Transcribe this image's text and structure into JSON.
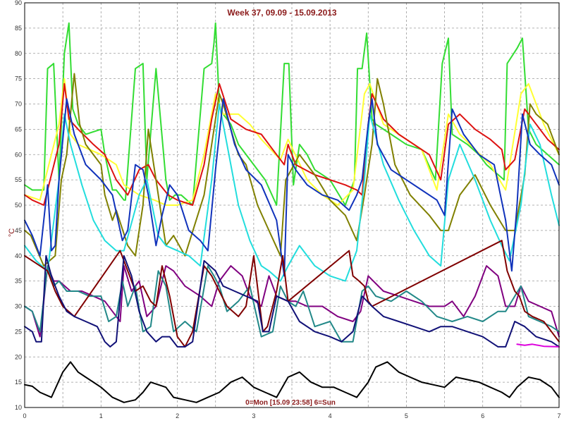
{
  "chart_data": {
    "type": "line",
    "title": "Week 37, 09.09 - 15.09.2013",
    "ylabel": "°C",
    "xlabel": "",
    "annotation": "0=Mon [15.09 23:58] 6=Sun",
    "xlim": [
      0,
      7
    ],
    "ylim": [
      10,
      90
    ],
    "xticks": [
      0,
      1,
      2,
      3,
      4,
      5,
      6,
      7
    ],
    "yticks": [
      10,
      15,
      20,
      25,
      30,
      35,
      40,
      45,
      50,
      55,
      60,
      65,
      70,
      75,
      80,
      85,
      90
    ],
    "grid": true,
    "legend": "none",
    "series": [
      {
        "color": "#33dd33",
        "x": [
          0,
          0.1,
          0.25,
          0.3,
          0.38,
          0.45,
          0.52,
          0.58,
          0.63,
          0.7,
          0.8,
          1.0,
          1.05,
          1.15,
          1.2,
          1.3,
          1.32,
          1.45,
          1.55,
          1.6,
          1.72,
          1.85,
          1.9,
          1.97,
          2.05,
          2.2,
          2.35,
          2.45,
          2.48,
          2.5,
          2.55,
          2.6,
          2.7,
          2.8,
          3.0,
          3.15,
          3.3,
          3.4,
          3.46,
          3.52,
          3.6,
          3.7,
          3.8,
          4.0,
          4.2,
          4.32,
          4.36,
          4.42,
          4.48,
          4.55,
          4.6,
          4.8,
          5.0,
          5.2,
          5.38,
          5.47,
          5.55,
          5.6,
          5.8,
          5.95,
          6.05,
          6.28,
          6.32,
          6.45,
          6.52,
          6.6,
          6.7,
          6.85,
          7.0
        ],
        "y": [
          54,
          53,
          53,
          77,
          78,
          55,
          80,
          86,
          69,
          66,
          64,
          65,
          60,
          53,
          53,
          51,
          51,
          77,
          78,
          55,
          77,
          55,
          51,
          52,
          52,
          50,
          77,
          78,
          82,
          86,
          70,
          68,
          66,
          62,
          58,
          55,
          50,
          78,
          78,
          54,
          62,
          60,
          57,
          55,
          50,
          55,
          77,
          77,
          84,
          67,
          66,
          64,
          62,
          61,
          55,
          78,
          83,
          64,
          62,
          60,
          58,
          55,
          78,
          81,
          83,
          65,
          62,
          60,
          58
        ]
      },
      {
        "color": "#ffff33",
        "x": [
          0,
          0.2,
          0.45,
          0.52,
          0.6,
          0.7,
          0.85,
          1.0,
          1.2,
          1.3,
          1.5,
          1.7,
          1.85,
          2.0,
          2.2,
          2.35,
          2.5,
          2.6,
          2.8,
          2.95,
          3.1,
          3.35,
          3.45,
          3.7,
          3.9,
          4.1,
          4.3,
          4.45,
          4.52,
          4.7,
          4.9,
          5.2,
          5.4,
          5.55,
          5.7,
          5.9,
          6.1,
          6.3,
          6.5,
          6.6,
          6.8,
          7.0
        ],
        "y": [
          52,
          51,
          66,
          75,
          64,
          62,
          61,
          60,
          58,
          54,
          52,
          51,
          50,
          50,
          51,
          60,
          72,
          68,
          68,
          66,
          63,
          59,
          63,
          55,
          52,
          50,
          53,
          72,
          74,
          66,
          64,
          61,
          53,
          68,
          64,
          61,
          58,
          53,
          72,
          74,
          66,
          60
        ]
      },
      {
        "color": "#dd1111",
        "x": [
          0,
          0.1,
          0.25,
          0.35,
          0.45,
          0.52,
          0.58,
          0.7,
          0.9,
          1.05,
          1.2,
          1.35,
          1.5,
          1.62,
          1.72,
          1.88,
          2.0,
          2.2,
          2.35,
          2.45,
          2.55,
          2.7,
          2.9,
          3.1,
          3.3,
          3.4,
          3.45,
          3.55,
          3.8,
          4.0,
          4.2,
          4.35,
          4.42,
          4.5,
          4.55,
          4.7,
          4.9,
          5.1,
          5.3,
          5.45,
          5.55,
          5.7,
          5.9,
          6.1,
          6.25,
          6.3,
          6.42,
          6.55,
          6.7,
          6.85,
          7.0
        ],
        "y": [
          52,
          51,
          50,
          56,
          62,
          74,
          67,
          65,
          62,
          60,
          55,
          52,
          57,
          58,
          55,
          52,
          51,
          50,
          58,
          67,
          74,
          67,
          65,
          64,
          60,
          58,
          62,
          58,
          56,
          55,
          54,
          53,
          52,
          66,
          72,
          67,
          64,
          62,
          60,
          55,
          66,
          68,
          65,
          63,
          61,
          57,
          59,
          69,
          66,
          63,
          61
        ]
      },
      {
        "color": "#808000",
        "x": [
          0,
          0.08,
          0.25,
          0.4,
          0.48,
          0.55,
          0.65,
          0.72,
          0.8,
          1.0,
          1.05,
          1.15,
          1.2,
          1.35,
          1.45,
          1.55,
          1.62,
          1.72,
          1.85,
          1.95,
          2.1,
          2.35,
          2.48,
          2.55,
          2.6,
          2.8,
          2.9,
          3.05,
          3.2,
          3.35,
          3.42,
          3.6,
          3.8,
          4.0,
          4.2,
          4.35,
          4.45,
          4.55,
          4.62,
          4.7,
          4.85,
          5.05,
          5.3,
          5.45,
          5.55,
          5.7,
          5.9,
          6.1,
          6.3,
          6.42,
          6.55,
          6.62,
          6.7,
          6.85,
          7.0
        ],
        "y": [
          45,
          44,
          38,
          40,
          55,
          60,
          76,
          66,
          62,
          58,
          52,
          47,
          49,
          42,
          40,
          50,
          65,
          55,
          42,
          44,
          40,
          52,
          65,
          72,
          70,
          60,
          58,
          50,
          45,
          40,
          55,
          60,
          56,
          51,
          48,
          43,
          52,
          62,
          75,
          70,
          58,
          52,
          48,
          45,
          45,
          52,
          56,
          50,
          45,
          45,
          56,
          70,
          68,
          66,
          60
        ]
      },
      {
        "color": "#22dddd",
        "x": [
          0,
          0.15,
          0.3,
          0.45,
          0.52,
          0.6,
          0.75,
          0.9,
          1.05,
          1.2,
          1.3,
          1.5,
          1.6,
          1.75,
          1.85,
          2.0,
          2.15,
          2.3,
          2.45,
          2.55,
          2.65,
          2.8,
          2.95,
          3.1,
          3.2,
          3.35,
          3.45,
          3.6,
          3.8,
          4.0,
          4.2,
          4.35,
          4.45,
          4.52,
          4.7,
          4.9,
          5.1,
          5.3,
          5.45,
          5.55,
          5.7,
          5.9,
          6.1,
          6.25,
          6.35,
          6.5,
          6.62,
          6.75,
          6.9,
          7.0
        ],
        "y": [
          42,
          39,
          37,
          55,
          68,
          62,
          54,
          47,
          43,
          41,
          41,
          52,
          55,
          44,
          42,
          41,
          40,
          38,
          55,
          70,
          62,
          50,
          43,
          38,
          37,
          35,
          38,
          42,
          38,
          36,
          35,
          41,
          55,
          68,
          58,
          51,
          45,
          40,
          38,
          55,
          62,
          55,
          47,
          42,
          39,
          50,
          66,
          62,
          52,
          46
        ]
      },
      {
        "color": "#1133bb",
        "x": [
          0,
          0.1,
          0.2,
          0.3,
          0.35,
          0.4,
          0.45,
          0.55,
          0.65,
          0.8,
          1.0,
          1.15,
          1.28,
          1.35,
          1.45,
          1.55,
          1.62,
          1.72,
          1.8,
          1.9,
          2.0,
          2.15,
          2.3,
          2.4,
          2.5,
          2.6,
          2.75,
          2.9,
          3.1,
          3.3,
          3.4,
          3.45,
          3.55,
          3.7,
          3.9,
          4.1,
          4.25,
          4.35,
          4.42,
          4.5,
          4.55,
          4.62,
          4.8,
          5.0,
          5.2,
          5.4,
          5.5,
          5.6,
          5.75,
          5.95,
          6.15,
          6.3,
          6.38,
          6.45,
          6.52,
          6.62,
          6.75,
          6.9,
          7.0
        ],
        "y": [
          47,
          44,
          40,
          54,
          41,
          42,
          55,
          71,
          64,
          58,
          55,
          52,
          43,
          45,
          58,
          57,
          52,
          42,
          48,
          54,
          52,
          45,
          43,
          41,
          57,
          71,
          62,
          57,
          54,
          47,
          36,
          60,
          57,
          54,
          52,
          51,
          49,
          52,
          55,
          66,
          71,
          62,
          57,
          55,
          53,
          51,
          48,
          69,
          64,
          60,
          58,
          47,
          37,
          50,
          68,
          62,
          60,
          58,
          54
        ]
      },
      {
        "color": "#800080",
        "x": [
          0,
          0.1,
          0.2,
          0.3,
          0.38,
          0.45,
          0.6,
          0.75,
          0.9,
          1.05,
          1.15,
          1.25,
          1.3,
          1.4,
          1.5,
          1.6,
          1.72,
          1.85,
          1.95,
          2.1,
          2.3,
          2.45,
          2.55,
          2.7,
          2.85,
          2.95,
          3.1,
          3.2,
          3.3,
          3.45,
          3.55,
          3.7,
          3.9,
          4.1,
          4.3,
          4.4,
          4.5,
          4.7,
          4.9,
          5.1,
          5.3,
          5.5,
          5.6,
          5.75,
          5.9,
          6.05,
          6.2,
          6.3,
          6.42,
          6.5,
          6.6,
          6.75,
          6.9,
          7.0
        ],
        "y": [
          30,
          29,
          24,
          38,
          35,
          35,
          33,
          33,
          32,
          31,
          29,
          27,
          38,
          33,
          35,
          28,
          30,
          38,
          37,
          34,
          32,
          30,
          35,
          38,
          36,
          32,
          30,
          36,
          32,
          31,
          31,
          30,
          30,
          28,
          27,
          29,
          36,
          33,
          32,
          31,
          30,
          30,
          31,
          28,
          32,
          38,
          36,
          30,
          30,
          34,
          31,
          30,
          29,
          24
        ]
      },
      {
        "color": "#228888",
        "x": [
          0,
          0.1,
          0.2,
          0.3,
          0.38,
          0.45,
          0.55,
          0.7,
          0.85,
          1.0,
          1.1,
          1.2,
          1.28,
          1.35,
          1.45,
          1.55,
          1.65,
          1.75,
          1.85,
          1.95,
          2.1,
          2.25,
          2.4,
          2.48,
          2.55,
          2.65,
          2.8,
          2.95,
          3.1,
          3.25,
          3.35,
          3.45,
          3.55,
          3.65,
          3.8,
          4.0,
          4.15,
          4.3,
          4.42,
          4.5,
          4.6,
          4.8,
          5.0,
          5.2,
          5.4,
          5.6,
          5.8,
          6.0,
          6.2,
          6.3,
          6.42,
          6.5,
          6.6,
          6.75,
          6.9,
          7.0
        ],
        "y": [
          30,
          29,
          25,
          38,
          34,
          35,
          33,
          33,
          32,
          32,
          27,
          28,
          35,
          30,
          34,
          25,
          26,
          37,
          34,
          25,
          27,
          25,
          38,
          36,
          34,
          29,
          31,
          34,
          24,
          25,
          34,
          31,
          30,
          33,
          26,
          27,
          23,
          23,
          33,
          34,
          32,
          31,
          33,
          31,
          28,
          27,
          28,
          27,
          29,
          29,
          32,
          34,
          28,
          27,
          26,
          25
        ]
      },
      {
        "color": "#800000",
        "x": [
          0,
          0.2,
          0.3,
          0.4,
          0.5,
          0.65,
          1.25,
          1.35,
          1.45,
          1.55,
          1.65,
          1.72,
          1.8,
          1.9,
          2.0,
          2.1,
          2.2,
          2.35,
          2.45,
          2.55,
          2.65,
          2.8,
          2.9,
          3.0,
          3.12,
          3.18,
          3.3,
          3.38,
          3.45,
          4.25,
          4.3,
          4.38,
          4.45,
          4.5,
          4.55,
          6.25,
          6.32,
          6.42,
          6.48,
          6.55,
          6.65,
          6.8,
          7.0
        ],
        "y": [
          40,
          38,
          37,
          33,
          30,
          28,
          41,
          37,
          33,
          34,
          31,
          30,
          38,
          32,
          24,
          22,
          25,
          38,
          36,
          33,
          30,
          28,
          30,
          40,
          25,
          26,
          33,
          40,
          31,
          41,
          36,
          35,
          34,
          31,
          30,
          43,
          37,
          33,
          32,
          29,
          28,
          27,
          23
        ]
      },
      {
        "color": "#111177",
        "x": [
          0,
          0.1,
          0.15,
          0.22,
          0.28,
          0.35,
          0.45,
          0.55,
          0.65,
          0.8,
          0.95,
          1.05,
          1.12,
          1.2,
          1.3,
          1.4,
          1.5,
          1.6,
          1.72,
          1.8,
          1.9,
          2.0,
          2.1,
          2.2,
          2.35,
          2.5,
          2.6,
          2.75,
          2.9,
          3.05,
          3.12,
          3.2,
          3.3,
          3.45,
          3.6,
          3.8,
          4.0,
          4.15,
          4.3,
          4.42,
          4.55,
          4.7,
          4.9,
          5.1,
          5.3,
          5.45,
          5.6,
          5.8,
          6.0,
          6.2,
          6.3,
          6.42,
          6.55,
          6.7,
          6.9,
          7.0
        ],
        "y": [
          26,
          25,
          23,
          23,
          40,
          36,
          32,
          29,
          28,
          27,
          26,
          23,
          22,
          23,
          40,
          36,
          29,
          25,
          23,
          24,
          24,
          22,
          22,
          23,
          39,
          37,
          34,
          33,
          32,
          31,
          25,
          25,
          32,
          31,
          27,
          25,
          24,
          23,
          25,
          32,
          30,
          28,
          27,
          26,
          25,
          26,
          26,
          25,
          24,
          22,
          22,
          27,
          26,
          24,
          23,
          22
        ]
      },
      {
        "color": "#dd00dd",
        "x": [
          6.45,
          6.55,
          6.65,
          6.8,
          7.0
        ],
        "y": [
          22.5,
          22.3,
          22.5,
          22.1,
          22.0
        ]
      },
      {
        "color": "#000000",
        "x": [
          0,
          0.1,
          0.2,
          0.35,
          0.5,
          0.6,
          0.7,
          0.8,
          0.9,
          1.0,
          1.15,
          1.3,
          1.45,
          1.55,
          1.65,
          1.75,
          1.85,
          1.95,
          2.1,
          2.25,
          2.4,
          2.55,
          2.7,
          2.85,
          3.0,
          3.15,
          3.3,
          3.45,
          3.6,
          3.75,
          3.9,
          4.05,
          4.2,
          4.35,
          4.5,
          4.6,
          4.75,
          4.9,
          5.05,
          5.2,
          5.35,
          5.5,
          5.65,
          5.8,
          5.95,
          6.1,
          6.25,
          6.35,
          6.45,
          6.6,
          6.75,
          6.9,
          7.0
        ],
        "y": [
          14.5,
          14.2,
          13,
          12,
          17,
          19,
          17,
          16,
          15,
          14,
          12,
          11,
          11.5,
          13,
          15,
          14.5,
          14,
          12,
          11.5,
          11,
          12,
          13,
          15,
          16,
          14,
          13,
          12,
          16,
          17,
          15,
          14,
          14,
          13,
          12,
          15,
          18,
          19,
          17,
          16,
          15,
          14.5,
          14,
          16,
          15.5,
          15,
          14,
          13,
          12,
          14,
          16,
          15.5,
          14,
          12
        ]
      }
    ]
  }
}
